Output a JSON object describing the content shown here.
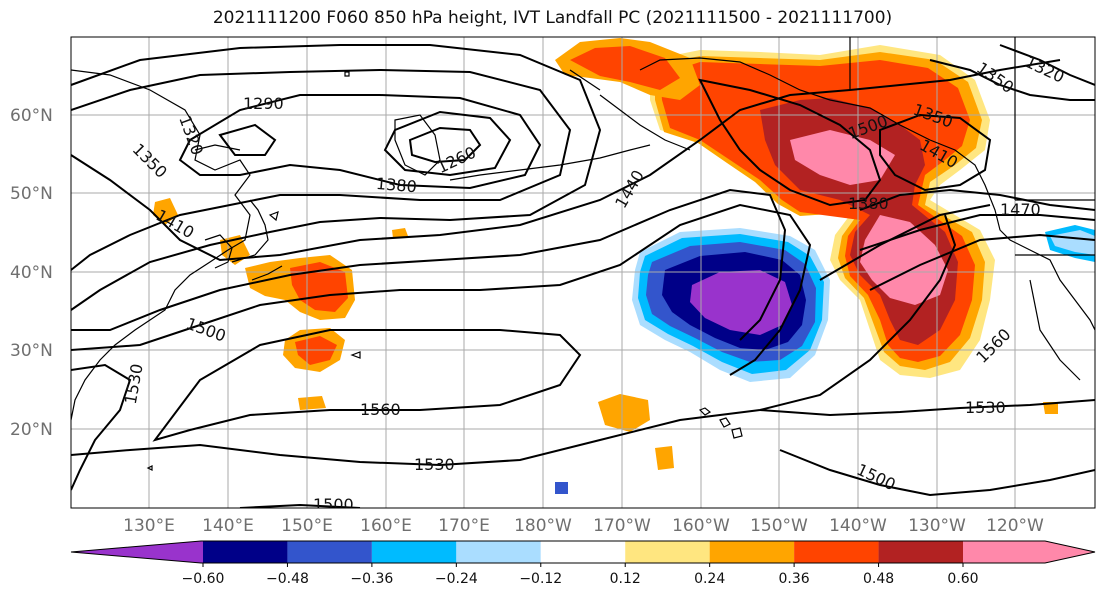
{
  "title": "2021111200 F060 850 hPa height, IVT Landfall PC (2021111500 - 2021111700)",
  "lat_ticks": [
    "60°N",
    "50°N",
    "40°N",
    "30°N",
    "20°N"
  ],
  "lon_ticks": [
    "130°E",
    "140°E",
    "150°E",
    "160°E",
    "170°E",
    "180°W",
    "170°W",
    "160°W",
    "150°W",
    "140°W",
    "130°W",
    "120°W"
  ],
  "colorbar": {
    "colors": [
      "#9933cc",
      "#000088",
      "#3355cc",
      "#00bbff",
      "#aaddff",
      "#ffffff",
      "#ffe680",
      "#ffa500",
      "#ff4400",
      "#b22222",
      "#ff88aa"
    ],
    "tick_labels": [
      "−0.60",
      "−0.48",
      "−0.36",
      "−0.24",
      "−0.12",
      "0.12",
      "0.24",
      "0.36",
      "0.48",
      "0.60"
    ],
    "extend": "both"
  },
  "contour_labels": [
    {
      "text": "1290"
    },
    {
      "text": "1320"
    },
    {
      "text": "1350"
    },
    {
      "text": "1260"
    },
    {
      "text": "1380"
    },
    {
      "text": "1410"
    },
    {
      "text": "1440"
    },
    {
      "text": "1500"
    },
    {
      "text": "1530"
    },
    {
      "text": "1560"
    },
    {
      "text": "1530"
    },
    {
      "text": "1500"
    },
    {
      "text": "1350"
    },
    {
      "text": "1320"
    },
    {
      "text": "1380"
    },
    {
      "text": "1530"
    },
    {
      "text": "1560"
    },
    {
      "text": "1500"
    },
    {
      "text": "1470"
    },
    {
      "text": "1350"
    },
    {
      "text": "1410"
    },
    {
      "text": "1500"
    }
  ],
  "colors": {
    "contour": "#000000",
    "grid": "#aaaaaa",
    "coast": "#000000"
  }
}
